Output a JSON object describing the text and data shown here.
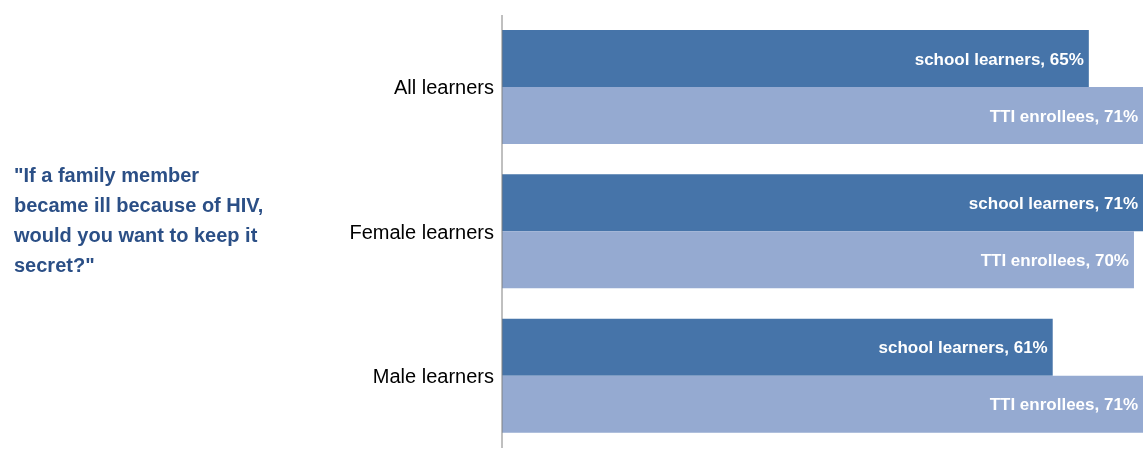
{
  "chart_data": {
    "type": "bar",
    "orientation": "horizontal",
    "title": "\"If a family member became ill because of HIV, would you want to keep it secret?\"",
    "categories": [
      "All learners",
      "Female learners",
      "Male learners"
    ],
    "series": [
      {
        "color": "#4674a9",
        "values": [
          65,
          71,
          61
        ],
        "value_labels": [
          "school learners, 65%",
          "school learners, 71%",
          "school learners, 61%"
        ]
      },
      {
        "color": "#95aad1",
        "values": [
          71,
          70,
          71
        ],
        "value_labels": [
          "TTI enrollees, 71%",
          "TTI enrollees, 70%",
          "TTI enrollees, 71%"
        ]
      }
    ]
  }
}
